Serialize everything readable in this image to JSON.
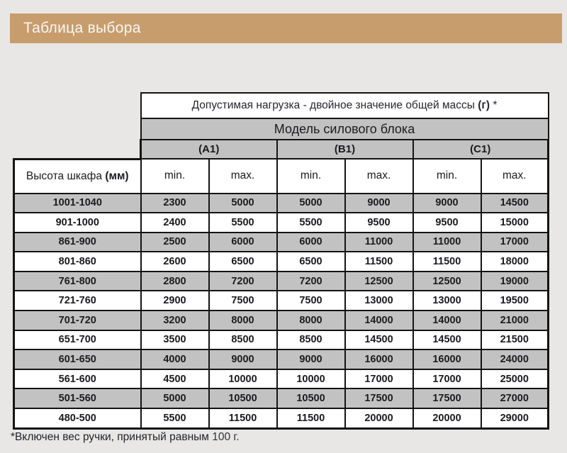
{
  "title": "Таблица выбора",
  "colors": {
    "accent_band": "#c79d6e",
    "row_gray": "#c3c2c2",
    "border": "#141414",
    "page_background": "#e8e7e5"
  },
  "table": {
    "load_header": {
      "prefix": "Допустимая нагрузка - двойное значение общей массы",
      "unit": "(г)",
      "suffix": "*"
    },
    "model_header": "Модель силового блока",
    "models": [
      "(A1)",
      "(B1)",
      "(C1)"
    ],
    "height_header": {
      "prefix": "Высота шкафа",
      "unit": "(мм)"
    },
    "minmax": [
      "min.",
      "max."
    ],
    "rows": [
      {
        "label": "1001-1040",
        "values": [
          2300,
          5000,
          5000,
          9000,
          9000,
          14500
        ]
      },
      {
        "label": "901-1000",
        "values": [
          2400,
          5500,
          5500,
          9500,
          9500,
          15000
        ]
      },
      {
        "label": "861-900",
        "values": [
          2500,
          6000,
          6000,
          11000,
          11000,
          17000
        ]
      },
      {
        "label": "801-860",
        "values": [
          2600,
          6500,
          6500,
          11500,
          11500,
          18000
        ]
      },
      {
        "label": "761-800",
        "values": [
          2800,
          7200,
          7200,
          12500,
          12500,
          19000
        ]
      },
      {
        "label": "721-760",
        "values": [
          2900,
          7500,
          7500,
          13000,
          13000,
          19500
        ]
      },
      {
        "label": "701-720",
        "values": [
          3200,
          8000,
          8000,
          14000,
          14000,
          21000
        ]
      },
      {
        "label": "651-700",
        "values": [
          3500,
          8500,
          8500,
          14500,
          14500,
          21500
        ]
      },
      {
        "label": "601-650",
        "values": [
          4000,
          9000,
          9000,
          16000,
          16000,
          24000
        ]
      },
      {
        "label": "561-600",
        "values": [
          4500,
          10000,
          10000,
          17000,
          17000,
          25000
        ]
      },
      {
        "label": "501-560",
        "values": [
          5000,
          10500,
          10500,
          17500,
          17500,
          27000
        ]
      },
      {
        "label": "480-500",
        "values": [
          5500,
          11500,
          11500,
          20000,
          20000,
          29000
        ]
      }
    ]
  },
  "footnote": {
    "prefix": "*Включен вес ручки, принятый равным",
    "value": "100 г."
  }
}
